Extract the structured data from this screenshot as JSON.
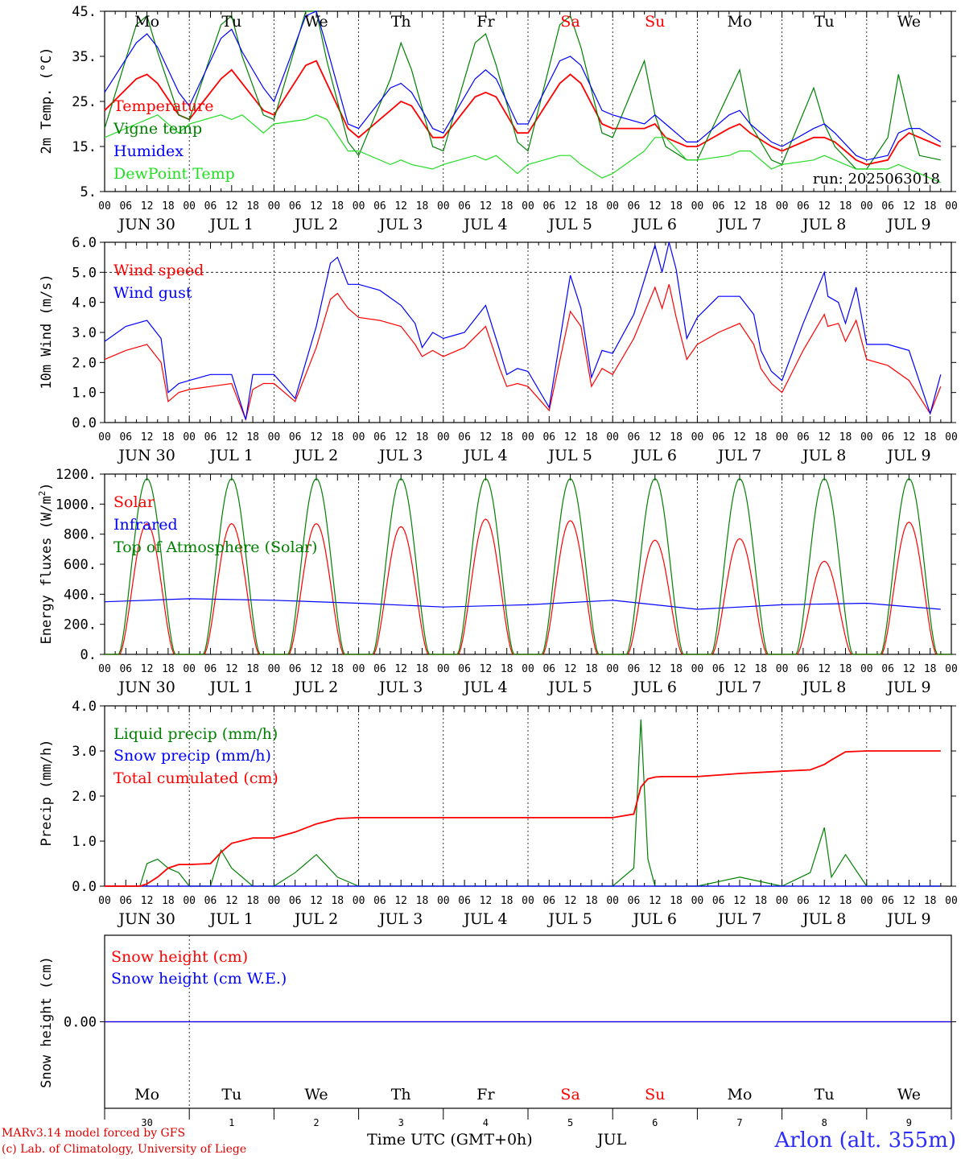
{
  "footer": {
    "model": "MARv3.14 model forced by GFS",
    "copyright": "(c) Lab. of Climatology, University of Liege",
    "time_label": "Time UTC (GMT+0h)",
    "month": "JUL",
    "station": "Arlon (alt. 355m)"
  },
  "colors": {
    "red": "#ff0000",
    "blue": "#0000ff",
    "green": "#008000",
    "lightgreen": "#22dd22",
    "weekend": "#ff0000",
    "station": "#2c2cff"
  },
  "days": [
    {
      "weekday": "Mo",
      "date_label": "JUN 30",
      "day_num": "30",
      "weekend": false
    },
    {
      "weekday": "Tu",
      "date_label": "JUL  1",
      "day_num": "1",
      "weekend": false
    },
    {
      "weekday": "We",
      "date_label": "JUL  2",
      "day_num": "2",
      "weekend": false
    },
    {
      "weekday": "Th",
      "date_label": "JUL  3",
      "day_num": "3",
      "weekend": false
    },
    {
      "weekday": "Fr",
      "date_label": "JUL  4",
      "day_num": "4",
      "weekend": false
    },
    {
      "weekday": "Sa",
      "date_label": "JUL  5",
      "day_num": "5",
      "weekend": true
    },
    {
      "weekday": "Su",
      "date_label": "JUL  6",
      "day_num": "6",
      "weekend": true
    },
    {
      "weekday": "Mo",
      "date_label": "JUL  7",
      "day_num": "7",
      "weekend": false
    },
    {
      "weekday": "Tu",
      "date_label": "JUL  8",
      "day_num": "8",
      "weekend": false
    },
    {
      "weekday": "We",
      "date_label": "JUL  9",
      "day_num": "9",
      "weekend": false
    }
  ],
  "hour_ticks": [
    "00",
    "06",
    "12",
    "18"
  ],
  "chart_data": [
    {
      "type": "line",
      "ylabel": "2m Temp. (°C)",
      "ylim": [
        5,
        45
      ],
      "yticks": [
        "5.",
        "15.",
        "25.",
        "35.",
        "45."
      ],
      "ytick_values": [
        5,
        15,
        25,
        35,
        45
      ],
      "grid": false,
      "annotation": "run: 2025063018",
      "x_hours": [
        0,
        9,
        12,
        15,
        21,
        24,
        33,
        36,
        39,
        45,
        48,
        57,
        60,
        63,
        69,
        72,
        81,
        84,
        87,
        93,
        96,
        105,
        108,
        111,
        117,
        120,
        129,
        132,
        135,
        141,
        144,
        153,
        156,
        159,
        165,
        168,
        177,
        180,
        183,
        189,
        192,
        201,
        204,
        207,
        213,
        216,
        222,
        225,
        228,
        231,
        237
      ],
      "series": [
        {
          "name": "Temperature",
          "color": "#ff0000",
          "values": [
            23,
            30,
            31,
            29,
            22,
            21,
            30,
            32,
            29,
            23,
            22,
            33,
            34,
            29,
            19,
            17,
            23,
            25,
            24,
            17,
            17,
            26,
            27,
            26,
            18,
            18,
            29,
            31,
            29,
            20,
            19,
            19,
            20,
            17,
            15,
            15,
            19,
            20,
            18,
            15,
            14,
            17,
            17,
            16,
            12,
            11,
            12,
            16,
            18,
            17,
            15
          ]
        },
        {
          "name": "Vigne temp",
          "color": "#008000",
          "values": [
            19,
            42,
            44,
            36,
            22,
            21,
            42,
            44,
            35,
            22,
            21,
            45,
            45,
            34,
            16,
            13,
            30,
            38,
            32,
            15,
            14,
            38,
            40,
            33,
            16,
            14,
            42,
            44,
            37,
            18,
            17,
            34,
            22,
            15,
            12,
            12,
            27,
            32,
            20,
            12,
            11,
            28,
            20,
            15,
            10,
            10,
            17,
            31,
            21,
            13,
            12
          ]
        },
        {
          "name": "Humidex",
          "color": "#0000ff",
          "values": [
            27,
            38,
            40,
            37,
            27,
            24,
            39,
            41,
            36,
            28,
            25,
            44,
            45,
            37,
            20,
            19,
            28,
            29,
            27,
            19,
            18,
            30,
            32,
            30,
            20,
            20,
            34,
            35,
            33,
            23,
            22,
            20,
            22,
            20,
            16,
            16,
            22,
            23,
            20,
            16,
            15,
            19,
            20,
            18,
            13,
            12,
            13,
            18,
            19,
            19,
            16
          ]
        },
        {
          "name": "DewPoint Temp",
          "color": "#22dd22",
          "values": [
            17,
            20,
            21,
            22,
            18,
            20,
            22,
            21,
            22,
            18,
            20,
            21,
            22,
            21,
            14,
            14,
            11,
            12,
            11,
            10,
            11,
            13,
            12,
            13,
            9,
            11,
            13,
            13,
            11,
            8,
            9,
            14,
            17,
            17,
            12,
            12,
            13,
            14,
            14,
            10,
            11,
            12,
            13,
            12,
            10,
            10,
            10,
            11,
            10,
            9,
            7
          ]
        }
      ]
    },
    {
      "type": "line",
      "ylabel": "10m Wind (m/s)",
      "ylim": [
        0,
        6
      ],
      "yticks": [
        "0.0",
        "1.0",
        "2.0",
        "3.0",
        "4.0",
        "5.0",
        "6.0"
      ],
      "ytick_values": [
        0,
        1,
        2,
        3,
        4,
        5,
        6
      ],
      "grid": false,
      "reference_line": 5.0,
      "x_hours": [
        0,
        6,
        12,
        16,
        18,
        21,
        24,
        30,
        36,
        40,
        42,
        45,
        48,
        54,
        60,
        64,
        66,
        69,
        72,
        78,
        84,
        88,
        90,
        93,
        96,
        102,
        108,
        112,
        114,
        117,
        120,
        126,
        132,
        135,
        138,
        141,
        144,
        150,
        156,
        158,
        160,
        162,
        165,
        168,
        174,
        180,
        184,
        186,
        189,
        192,
        198,
        204,
        205,
        208,
        210,
        213,
        216,
        222,
        228,
        234,
        237
      ],
      "series": [
        {
          "name": "Wind speed",
          "color": "#ff0000",
          "values": [
            2.1,
            2.4,
            2.6,
            2.0,
            0.7,
            1.0,
            1.1,
            1.2,
            1.3,
            0.1,
            1.1,
            1.3,
            1.3,
            0.7,
            2.5,
            4.1,
            4.3,
            3.8,
            3.5,
            3.4,
            3.2,
            2.6,
            2.2,
            2.4,
            2.2,
            2.5,
            3.2,
            1.8,
            1.2,
            1.3,
            1.2,
            0.4,
            3.7,
            3.2,
            1.2,
            1.8,
            1.6,
            2.8,
            4.5,
            3.8,
            4.6,
            3.5,
            2.1,
            2.6,
            3.0,
            3.3,
            2.6,
            1.8,
            1.3,
            1.0,
            2.4,
            3.6,
            3.2,
            3.3,
            2.7,
            3.4,
            2.1,
            1.9,
            1.4,
            0.3,
            1.2
          ]
        },
        {
          "name": "Wind gust",
          "color": "#0000ff",
          "values": [
            2.7,
            3.2,
            3.4,
            2.8,
            1.0,
            1.3,
            1.4,
            1.6,
            1.6,
            0.1,
            1.6,
            1.6,
            1.6,
            0.8,
            3.2,
            5.3,
            5.5,
            4.6,
            4.6,
            4.4,
            3.9,
            3.3,
            2.5,
            3.0,
            2.8,
            3.0,
            3.9,
            2.4,
            1.6,
            1.8,
            1.7,
            0.5,
            4.9,
            3.8,
            1.5,
            2.4,
            2.3,
            3.6,
            5.9,
            5.0,
            6.0,
            5.1,
            2.8,
            3.5,
            4.2,
            4.2,
            3.6,
            2.4,
            1.7,
            1.4,
            3.3,
            5.0,
            4.2,
            4.0,
            3.3,
            4.5,
            2.6,
            2.6,
            2.4,
            0.3,
            1.6
          ]
        }
      ]
    },
    {
      "type": "line",
      "ylabel": "Energy fluxes (W/m²)",
      "ylim": [
        0,
        1200
      ],
      "yticks": [
        "0.",
        "200.",
        "400.",
        "600.",
        "800.",
        "1000.",
        "1200."
      ],
      "ytick_values": [
        0,
        200,
        400,
        600,
        800,
        1000,
        1200
      ],
      "grid": false,
      "x_hours": [
        0,
        24,
        48,
        72,
        96,
        120,
        144,
        168,
        192,
        216,
        237
      ],
      "series": [
        {
          "name": "Solar",
          "color": "#ff0000",
          "peak_values": [
            870,
            870,
            870,
            850,
            900,
            890,
            760,
            770,
            620,
            880
          ],
          "values": [
            0,
            0,
            0,
            0,
            0,
            0,
            0,
            0,
            0,
            0,
            0
          ]
        },
        {
          "name": "Infrared",
          "color": "#0000ff",
          "values": [
            350,
            370,
            360,
            340,
            315,
            330,
            360,
            300,
            330,
            340,
            300
          ]
        },
        {
          "name": "Top of Atmosphere (Solar)",
          "color": "#008000",
          "peak_values": [
            1170,
            1170,
            1170,
            1170,
            1170,
            1170,
            1170,
            1170,
            1170,
            1170
          ],
          "values": [
            0,
            0,
            0,
            0,
            0,
            0,
            0,
            0,
            0,
            0,
            0
          ]
        }
      ]
    },
    {
      "type": "line",
      "ylabel": "Precip (mm/h)",
      "ylim": [
        0,
        4
      ],
      "yticks": [
        "0.0",
        "1.0",
        "2.0",
        "3.0",
        "4.0"
      ],
      "ytick_values": [
        0,
        1,
        2,
        3,
        4
      ],
      "grid": false,
      "x_hours": [
        0,
        10,
        12,
        15,
        18,
        21,
        24,
        30,
        33,
        36,
        42,
        48,
        54,
        60,
        66,
        72,
        96,
        120,
        144,
        150,
        152,
        154,
        156,
        158,
        168,
        180,
        192,
        200,
        204,
        206,
        210,
        216,
        237
      ],
      "series": [
        {
          "name": "Liquid precip (mm/h)",
          "color": "#008000",
          "values": [
            0,
            0,
            0.5,
            0.6,
            0.4,
            0.3,
            0,
            0,
            0.8,
            0.4,
            0,
            0,
            0.3,
            0.7,
            0.2,
            0,
            0,
            0,
            0,
            0.4,
            3.7,
            0.6,
            0,
            0,
            0,
            0.2,
            0,
            0.3,
            1.3,
            0.2,
            0.7,
            0,
            0
          ]
        },
        {
          "name": "Snow precip (mm/h)",
          "color": "#0000ff",
          "values": [
            0,
            0,
            0,
            0,
            0,
            0,
            0,
            0,
            0,
            0,
            0,
            0,
            0,
            0,
            0,
            0,
            0,
            0,
            0,
            0,
            0,
            0,
            0,
            0,
            0,
            0,
            0,
            0,
            0,
            0,
            0,
            0,
            0
          ]
        },
        {
          "name": "Total cumulated (cm)",
          "color": "#ff0000",
          "values": [
            0,
            0,
            0.05,
            0.2,
            0.4,
            0.48,
            0.48,
            0.5,
            0.75,
            0.95,
            1.07,
            1.07,
            1.2,
            1.38,
            1.5,
            1.52,
            1.52,
            1.52,
            1.52,
            1.6,
            2.2,
            2.38,
            2.42,
            2.43,
            2.43,
            2.5,
            2.55,
            2.58,
            2.7,
            2.8,
            2.98,
            3.0,
            3.0
          ]
        }
      ]
    },
    {
      "type": "line",
      "ylabel": "Snow height (cm)",
      "yticks": [
        "0.00"
      ],
      "ytick_values": [
        0
      ],
      "grid": false,
      "x_hours": [
        0,
        237
      ],
      "series": [
        {
          "name": "Snow height (cm)",
          "color": "#ff0000",
          "values": [
            0,
            0
          ]
        },
        {
          "name": "Snow height (cm W.E.)",
          "color": "#0000ff",
          "values": [
            0,
            0
          ]
        }
      ]
    }
  ]
}
